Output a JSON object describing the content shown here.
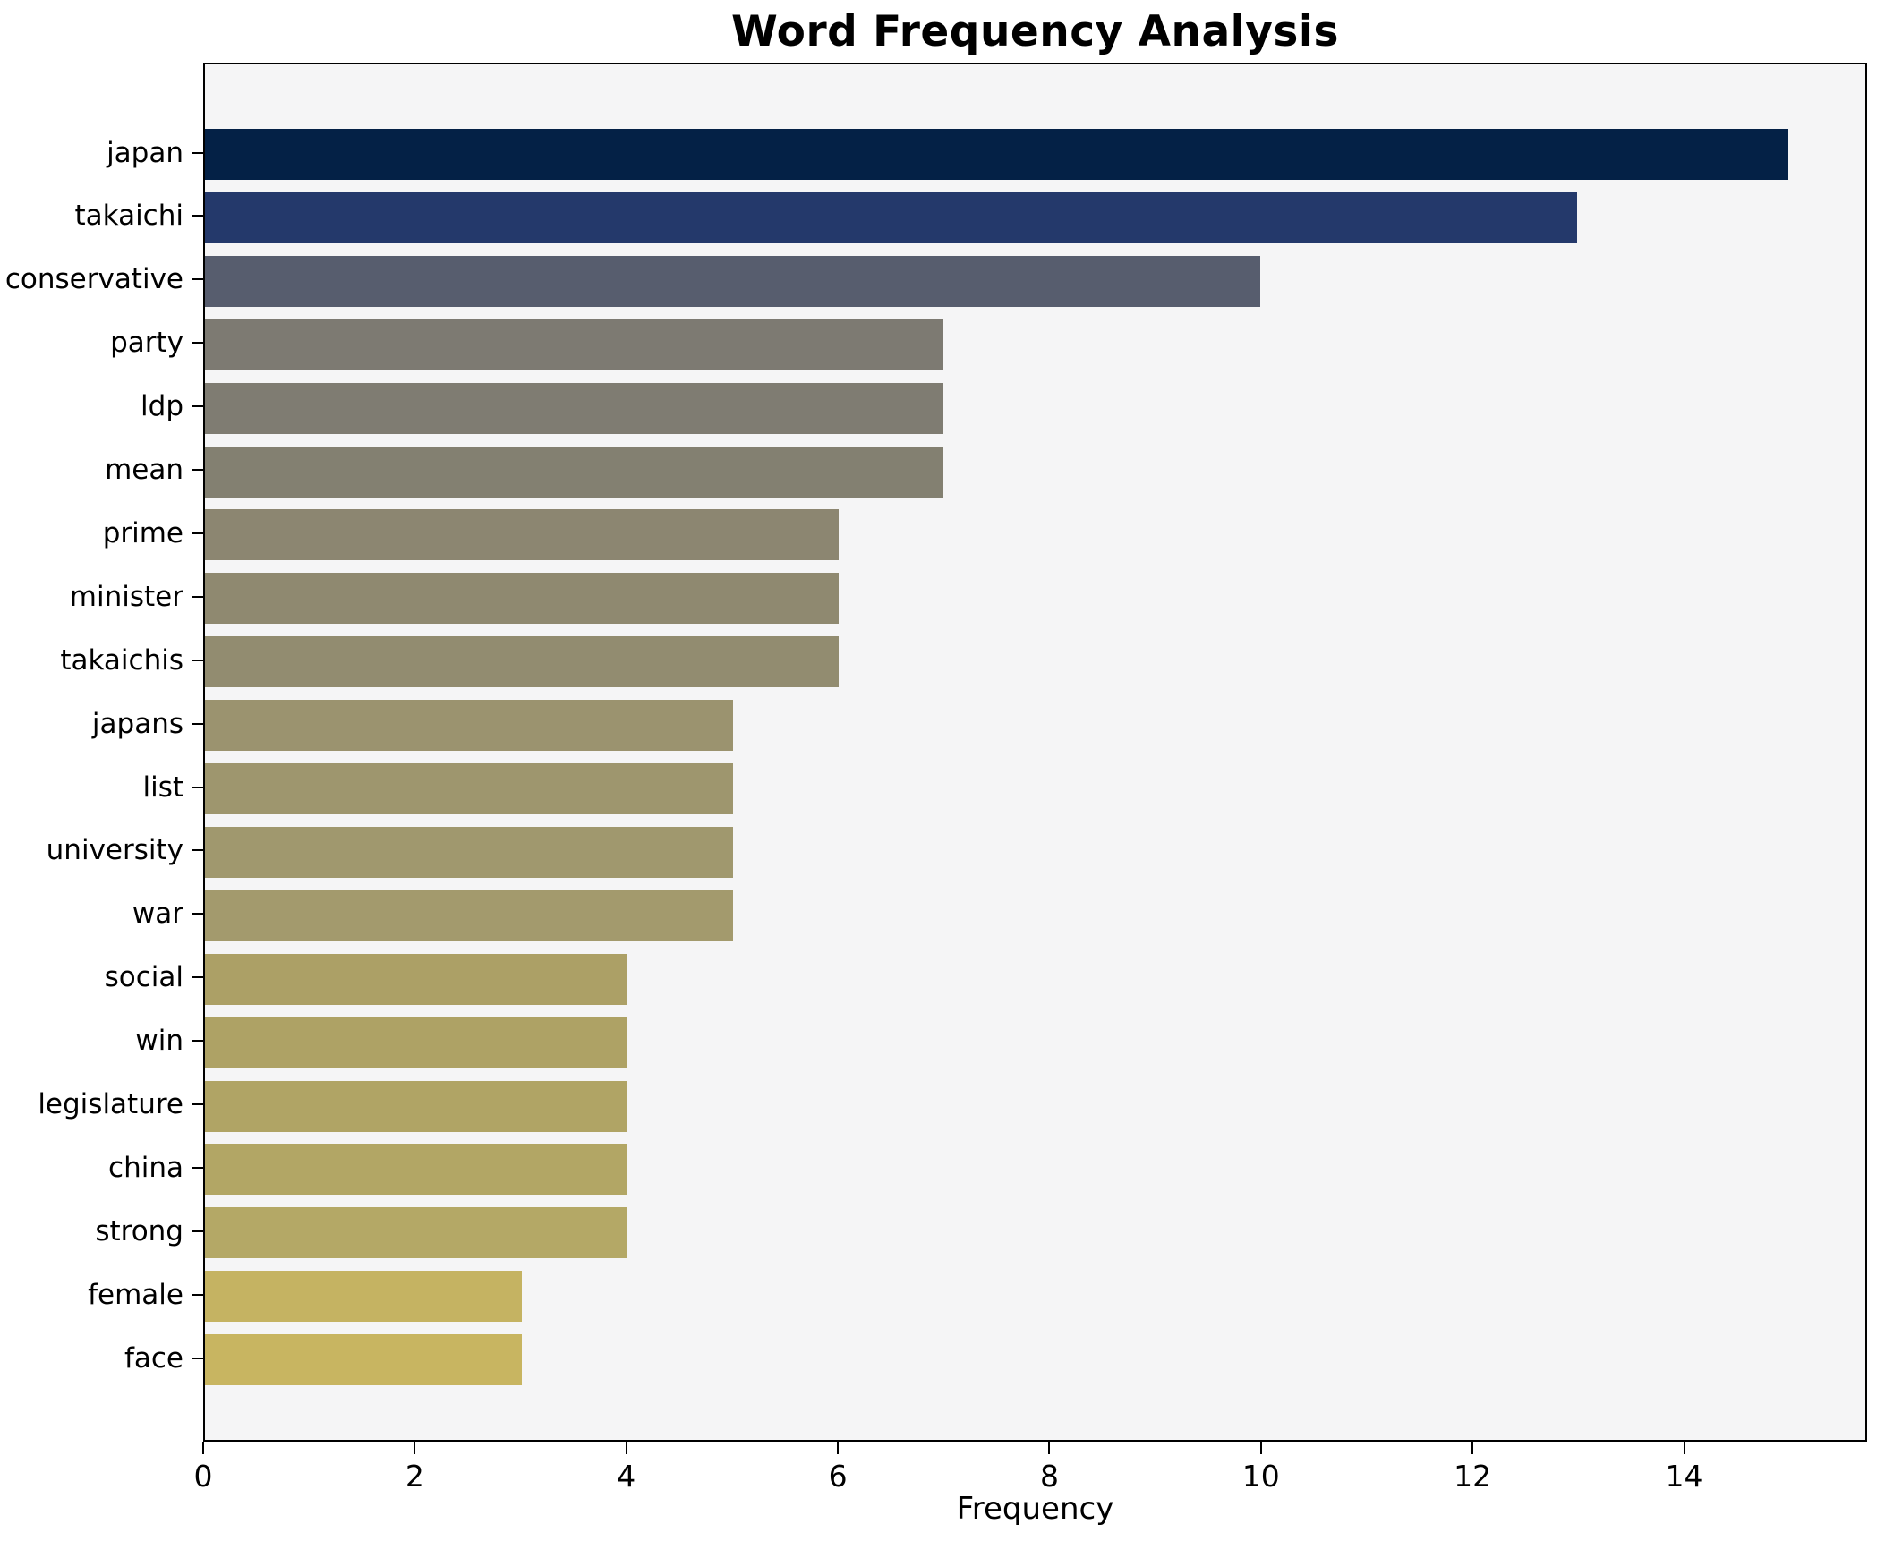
{
  "chart_data": {
    "type": "bar",
    "orientation": "horizontal",
    "title": "Word Frequency Analysis",
    "xlabel": "Frequency",
    "ylabel": "",
    "categories": [
      "japan",
      "takaichi",
      "conservative",
      "party",
      "ldp",
      "mean",
      "prime",
      "minister",
      "takaichis",
      "japans",
      "list",
      "university",
      "war",
      "social",
      "win",
      "legislature",
      "china",
      "strong",
      "female",
      "face"
    ],
    "values": [
      15,
      13,
      10,
      7,
      7,
      7,
      6,
      6,
      6,
      5,
      5,
      5,
      5,
      4,
      4,
      4,
      4,
      4,
      3,
      3
    ],
    "bar_colors": [
      "#042146",
      "#24396B",
      "#575D6E",
      "#7D7A72",
      "#7F7C72",
      "#838071",
      "#8C8671",
      "#8F8970",
      "#928C70",
      "#9B936F",
      "#9E966E",
      "#A0986E",
      "#A39A6D",
      "#ACA066",
      "#AEA265",
      "#B0A465",
      "#B2A665",
      "#B4A866",
      "#C5B362",
      "#C8B561"
    ],
    "xlim": [
      0,
      15.73
    ],
    "xticks": [
      0,
      2,
      4,
      6,
      8,
      10,
      12,
      14
    ],
    "grid": false,
    "plot_background": "#f5f5f6",
    "figure_background": "#ffffff",
    "axis_color": "#000000"
  }
}
